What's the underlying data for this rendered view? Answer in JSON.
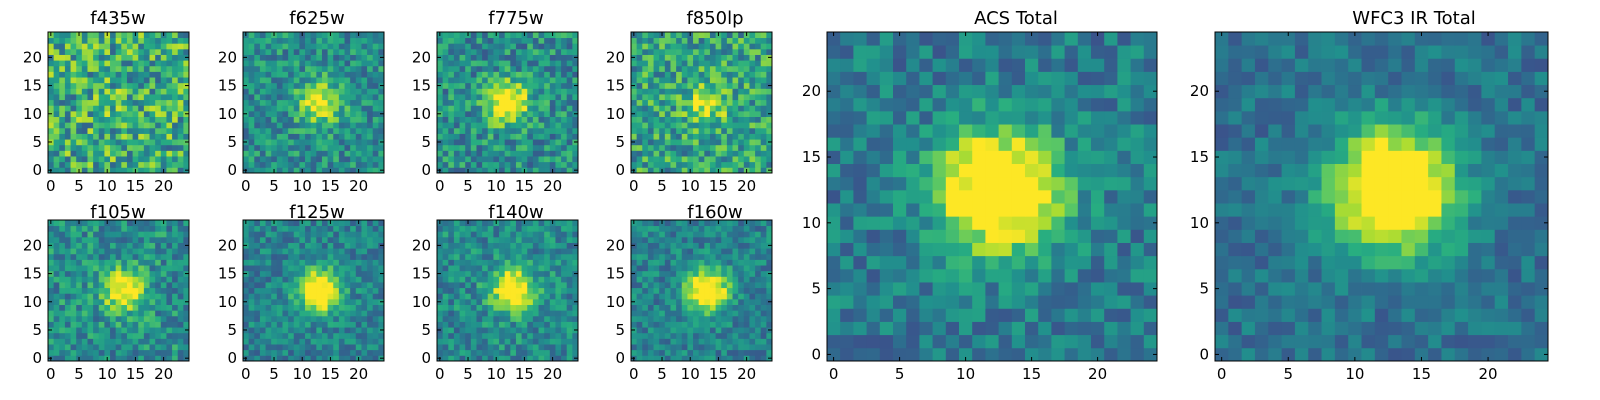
{
  "figure": {
    "description_free": true
  },
  "chart_data": [
    {
      "type": "heatmap",
      "title": "f435w",
      "grid": [
        25,
        25
      ],
      "blob": {
        "x": 12,
        "y": 12,
        "amplitude": 0.03
      },
      "noise": 0.3,
      "bias": 0.62,
      "xticks": [
        "0",
        "5",
        "10",
        "15",
        "20"
      ],
      "yticks": [
        "0",
        "5",
        "10",
        "15",
        "20"
      ],
      "xlim": [
        -0.5,
        24.5
      ],
      "ylim": [
        -0.5,
        24.5
      ],
      "colormap": "viridis",
      "seed": 11
    },
    {
      "type": "heatmap",
      "title": "f625w",
      "grid": [
        25,
        25
      ],
      "blob": {
        "x": 13,
        "y": 12,
        "amplitude": 0.28
      },
      "noise": 0.2,
      "bias": 0.5,
      "xticks": [
        "0",
        "5",
        "10",
        "15",
        "20"
      ],
      "yticks": [
        "0",
        "5",
        "10",
        "15",
        "20"
      ],
      "xlim": [
        -0.5,
        24.5
      ],
      "ylim": [
        -0.5,
        24.5
      ],
      "colormap": "viridis",
      "seed": 23
    },
    {
      "type": "heatmap",
      "title": "f775w",
      "grid": [
        25,
        25
      ],
      "blob": {
        "x": 12,
        "y": 12,
        "amplitude": 0.35
      },
      "noise": 0.22,
      "bias": 0.5,
      "xticks": [
        "0",
        "5",
        "10",
        "15",
        "20"
      ],
      "yticks": [
        "0",
        "5",
        "10",
        "15",
        "20"
      ],
      "xlim": [
        -0.5,
        24.5
      ],
      "ylim": [
        -0.5,
        24.5
      ],
      "colormap": "viridis",
      "seed": 37
    },
    {
      "type": "heatmap",
      "title": "f850lp",
      "grid": [
        25,
        25
      ],
      "blob": {
        "x": 13,
        "y": 12,
        "amplitude": 0.18
      },
      "noise": 0.25,
      "bias": 0.58,
      "xticks": [
        "0",
        "5",
        "10",
        "15",
        "20"
      ],
      "yticks": [
        "0",
        "5",
        "10",
        "15",
        "20"
      ],
      "xlim": [
        -0.5,
        24.5
      ],
      "ylim": [
        -0.5,
        24.5
      ],
      "colormap": "viridis",
      "seed": 41
    },
    {
      "type": "heatmap",
      "title": "f105w",
      "grid": [
        25,
        25
      ],
      "blob": {
        "x": 13,
        "y": 12,
        "amplitude": 0.32
      },
      "noise": 0.2,
      "bias": 0.5,
      "xticks": [
        "0",
        "5",
        "10",
        "15",
        "20"
      ],
      "yticks": [
        "0",
        "5",
        "10",
        "15",
        "20"
      ],
      "xlim": [
        -0.5,
        24.5
      ],
      "ylim": [
        -0.5,
        24.5
      ],
      "colormap": "viridis",
      "seed": 53
    },
    {
      "type": "heatmap",
      "title": "f125w",
      "grid": [
        25,
        25
      ],
      "blob": {
        "x": 13,
        "y": 12,
        "amplitude": 0.42
      },
      "noise": 0.16,
      "bias": 0.45,
      "xticks": [
        "0",
        "5",
        "10",
        "15",
        "20"
      ],
      "yticks": [
        "0",
        "5",
        "10",
        "15",
        "20"
      ],
      "xlim": [
        -0.5,
        24.5
      ],
      "ylim": [
        -0.5,
        24.5
      ],
      "colormap": "viridis",
      "seed": 67
    },
    {
      "type": "heatmap",
      "title": "f140w",
      "grid": [
        25,
        25
      ],
      "blob": {
        "x": 13,
        "y": 12,
        "amplitude": 0.38
      },
      "noise": 0.18,
      "bias": 0.48,
      "xticks": [
        "0",
        "5",
        "10",
        "15",
        "20"
      ],
      "yticks": [
        "0",
        "5",
        "10",
        "15",
        "20"
      ],
      "xlim": [
        -0.5,
        24.5
      ],
      "ylim": [
        -0.5,
        24.5
      ],
      "colormap": "viridis",
      "seed": 79
    },
    {
      "type": "heatmap",
      "title": "f160w",
      "grid": [
        25,
        25
      ],
      "blob": {
        "x": 13,
        "y": 12,
        "amplitude": 0.42
      },
      "noise": 0.16,
      "bias": 0.45,
      "xticks": [
        "0",
        "5",
        "10",
        "15",
        "20"
      ],
      "yticks": [
        "0",
        "5",
        "10",
        "15",
        "20"
      ],
      "xlim": [
        -0.5,
        24.5
      ],
      "ylim": [
        -0.5,
        24.5
      ],
      "colormap": "viridis",
      "seed": 83
    },
    {
      "type": "heatmap",
      "title": "ACS Total",
      "grid": [
        25,
        25
      ],
      "blob": {
        "x": 12.5,
        "y": 12.5,
        "amplitude": 0.48
      },
      "noise": 0.16,
      "bias": 0.42,
      "xticks": [
        "0",
        "5",
        "10",
        "15",
        "20"
      ],
      "yticks": [
        "0",
        "5",
        "10",
        "15",
        "20"
      ],
      "xlim": [
        -0.5,
        24.5
      ],
      "ylim": [
        -0.5,
        24.5
      ],
      "colormap": "viridis",
      "seed": 97
    },
    {
      "type": "heatmap",
      "title": "WFC3 IR Total",
      "grid": [
        25,
        25
      ],
      "blob": {
        "x": 13,
        "y": 12.5,
        "amplitude": 0.52
      },
      "noise": 0.12,
      "bias": 0.38,
      "xticks": [
        "0",
        "5",
        "10",
        "15",
        "20"
      ],
      "yticks": [
        "0",
        "5",
        "10",
        "15",
        "20"
      ],
      "xlim": [
        -0.5,
        24.5
      ],
      "ylim": [
        -0.5,
        24.5
      ],
      "colormap": "viridis",
      "seed": 101
    }
  ]
}
